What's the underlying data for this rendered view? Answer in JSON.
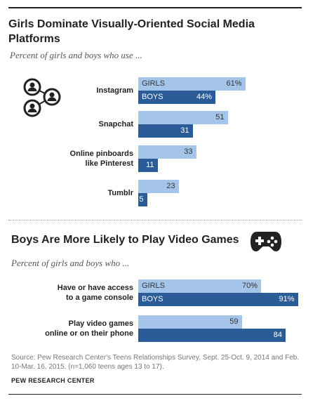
{
  "colors": {
    "girls": "#a5c4ea",
    "boys": "#2b5c97"
  },
  "icons": {
    "social": "social-network-icon",
    "games": "game-controller-icon"
  },
  "chart_data": [
    {
      "type": "bar",
      "title": "Girls Dominate Visually-Oriented Social Media Platforms",
      "subtitle": "Percent of girls and boys who use ...",
      "orientation": "horizontal",
      "xlim": [
        0,
        100
      ],
      "grid": false,
      "legend": "inline labels on first bars",
      "categories": [
        "Instagram",
        "Snapchat",
        "Online pinboards\nlike Pinterest",
        "Tumblr"
      ],
      "series": [
        {
          "name": "GIRLS",
          "values": [
            61,
            51,
            33,
            23
          ],
          "labels": [
            "61%",
            "51",
            "33",
            "23"
          ]
        },
        {
          "name": "BOYS",
          "values": [
            44,
            31,
            11,
            5
          ],
          "labels": [
            "44%",
            "31",
            "11",
            "5"
          ]
        }
      ]
    },
    {
      "type": "bar",
      "title": "Boys Are More Likely to Play Video Games",
      "subtitle": "Percent of girls and boys who ...",
      "orientation": "horizontal",
      "xlim": [
        0,
        100
      ],
      "grid": false,
      "legend": "inline labels on first bars",
      "categories": [
        "Have or have access\nto a game console",
        "Play video games\nonline or on their phone"
      ],
      "series": [
        {
          "name": "GIRLS",
          "values": [
            70,
            59
          ],
          "labels": [
            "70%",
            "59"
          ]
        },
        {
          "name": "BOYS",
          "values": [
            91,
            84
          ],
          "labels": [
            "91%",
            "84"
          ]
        }
      ]
    }
  ],
  "footer": {
    "source": "Source: Pew Research Center's Teens Relationships Survey, Sept. 25-Oct. 9, 2014 and Feb. 10-Mar. 16, 2015. (n=1,060 teens ages 13 to 17).",
    "brand": "PEW RESEARCH CENTER"
  }
}
